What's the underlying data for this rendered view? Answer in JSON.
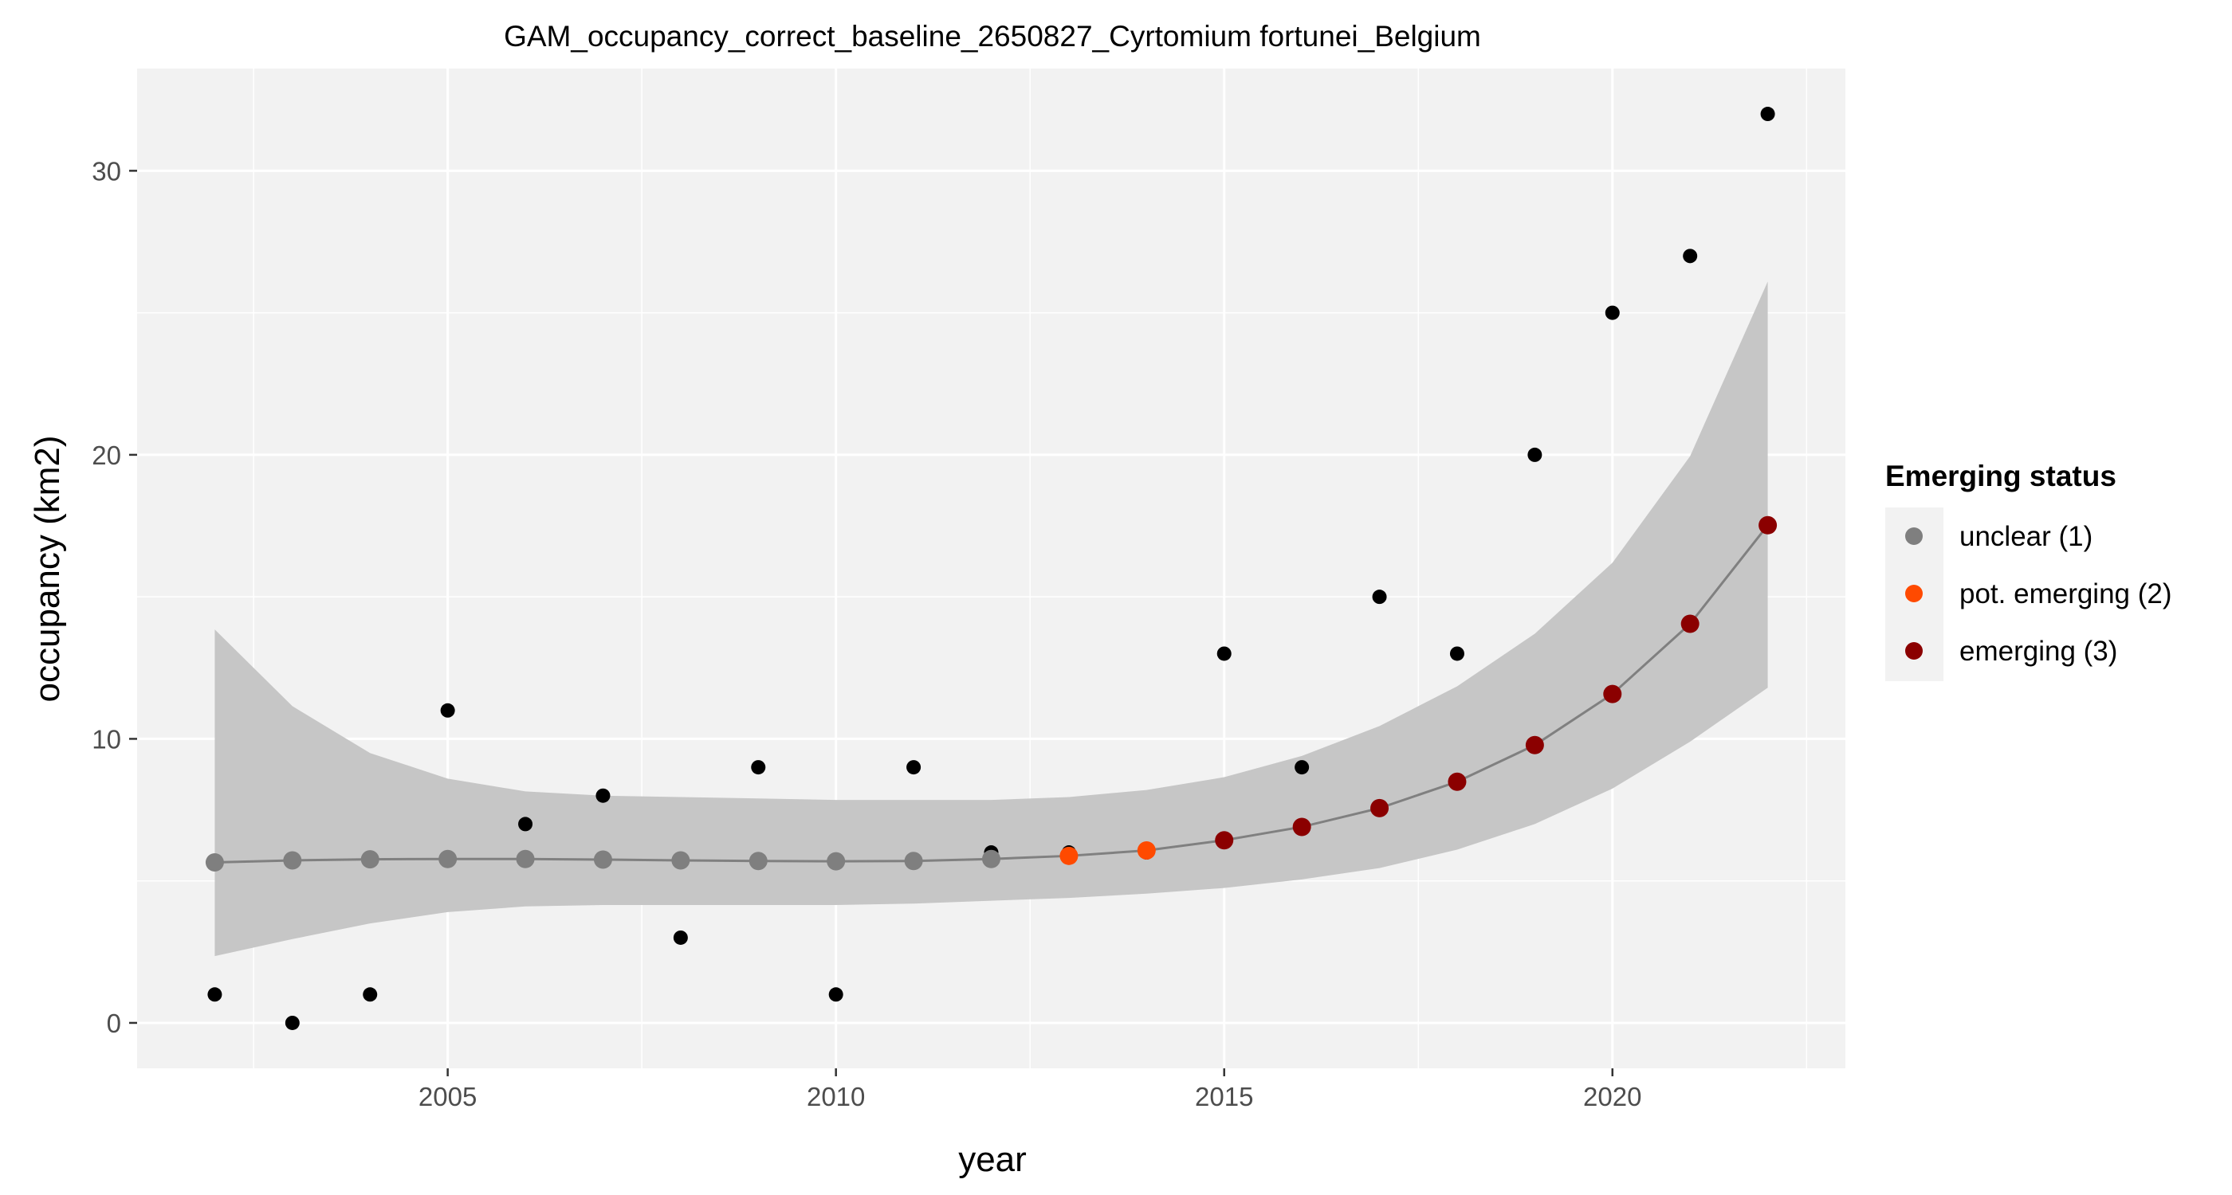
{
  "chart_data": {
    "type": "scatter",
    "title": "GAM_occupancy_correct_baseline_2650827_Cyrtomium fortunei_Belgium",
    "xlabel": "year",
    "ylabel": "occupancy (km2)",
    "xlim": [
      2001.0,
      2023.0
    ],
    "ylim": [
      -1.6,
      33.6
    ],
    "x_ticks": [
      2005,
      2010,
      2015,
      2020
    ],
    "x_tick_labels": [
      "2005",
      "2010",
      "2015",
      "2020"
    ],
    "y_ticks": [
      0,
      10,
      20,
      30
    ],
    "y_tick_labels": [
      "0",
      "10",
      "20",
      "30"
    ],
    "grid": true,
    "legend": {
      "title": "Emerging status",
      "position": "right",
      "entries": [
        {
          "label": "unclear (1)",
          "color": "#7f7f7f"
        },
        {
          "label": "pot. emerging (2)",
          "color": "#ff4a00"
        },
        {
          "label": "emerging (3)",
          "color": "#8b0000"
        }
      ]
    },
    "observed": {
      "x": [
        2002,
        2003,
        2004,
        2005,
        2006,
        2007,
        2008,
        2009,
        2010,
        2011,
        2012,
        2013,
        2014,
        2015,
        2016,
        2017,
        2018,
        2019,
        2020,
        2021,
        2022
      ],
      "y": [
        1,
        0,
        1,
        11,
        7,
        8,
        3,
        9,
        1,
        9,
        6,
        6,
        6,
        13,
        9,
        15,
        13,
        20,
        25,
        27,
        32
      ],
      "color": "#000000"
    },
    "fit": {
      "x": [
        2002,
        2003,
        2004,
        2005,
        2006,
        2007,
        2008,
        2009,
        2010,
        2011,
        2012,
        2013,
        2014,
        2015,
        2016,
        2017,
        2018,
        2019,
        2020,
        2021,
        2022
      ],
      "y": [
        5.65,
        5.72,
        5.76,
        5.77,
        5.77,
        5.75,
        5.72,
        5.7,
        5.69,
        5.7,
        5.77,
        5.88,
        6.07,
        6.43,
        6.9,
        7.56,
        8.49,
        9.78,
        11.58,
        14.05,
        17.52
      ],
      "lower": [
        2.35,
        2.95,
        3.5,
        3.9,
        4.1,
        4.15,
        4.15,
        4.15,
        4.15,
        4.2,
        4.3,
        4.4,
        4.55,
        4.75,
        5.05,
        5.45,
        6.1,
        7.0,
        8.25,
        9.9,
        11.8
      ],
      "upper": [
        13.85,
        11.15,
        9.5,
        8.6,
        8.15,
        8.0,
        7.95,
        7.9,
        7.85,
        7.85,
        7.85,
        7.95,
        8.2,
        8.65,
        9.4,
        10.45,
        11.85,
        13.7,
        16.2,
        19.95,
        26.1
      ],
      "status": [
        1,
        1,
        1,
        1,
        1,
        1,
        1,
        1,
        1,
        1,
        1,
        2,
        2,
        3,
        3,
        3,
        3,
        3,
        3,
        3,
        3
      ],
      "line_color": "#808080",
      "ribbon_color": "#c6c6c6"
    }
  }
}
